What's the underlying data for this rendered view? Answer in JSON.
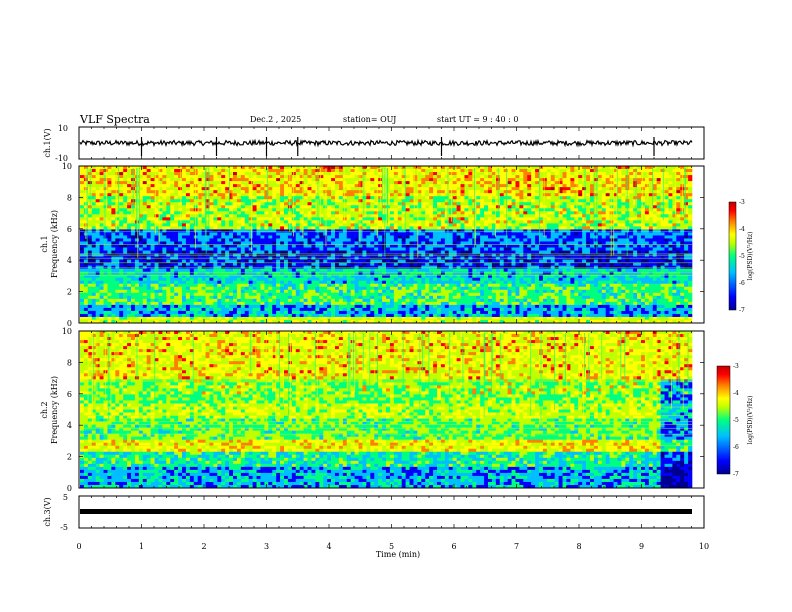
{
  "header": {
    "title": "VLF Spectra",
    "date": "Dec.2 , 2025",
    "station": "station= OUJ",
    "start": "start  UT =   9 : 40 : 0"
  },
  "chart_data": [
    {
      "type": "line",
      "ylabel": "ch.1(V)",
      "ylim": [
        -10,
        10
      ],
      "yticks": [
        "10",
        "-10"
      ],
      "xlim": [
        0,
        10
      ],
      "description_values": {
        "baseline": 0,
        "noise_amplitude": 1,
        "spikes": [
          1,
          2.2,
          3,
          3.5,
          5.8,
          9.2
        ]
      }
    },
    {
      "type": "heatmap",
      "ylabel": "Frequency (kHz)",
      "ylabel2": "ch.1",
      "ylim": [
        0,
        10
      ],
      "yticks": [
        "0",
        "2",
        "4",
        "6",
        "8",
        "10"
      ],
      "xlim": [
        0,
        10
      ],
      "colorbar": {
        "label": "log(PSD)(V²/Hz)",
        "ticks": [
          "-3",
          "-4",
          "-5",
          "-6",
          "-7"
        ],
        "range": [
          -7,
          -3
        ]
      },
      "bands": [
        {
          "f": [
            0.0,
            0.3
          ],
          "level": -4.8
        },
        {
          "f": [
            0.3,
            1.2
          ],
          "level": -6.0
        },
        {
          "f": [
            1.2,
            2.5
          ],
          "level": -5.4
        },
        {
          "f": [
            2.5,
            3.5
          ],
          "level": -5.8
        },
        {
          "f": [
            3.5,
            4.6
          ],
          "level": -6.5
        },
        {
          "f": [
            4.6,
            6.0
          ],
          "level": -6.3
        },
        {
          "f": [
            6.0,
            8.0
          ],
          "level": -5.0
        },
        {
          "f": [
            8.0,
            10.0
          ],
          "level": -4.6
        }
      ]
    },
    {
      "type": "heatmap",
      "ylabel": "Frequency (kHz)",
      "ylabel2": "ch.2",
      "ylim": [
        0,
        10
      ],
      "yticks": [
        "0",
        "2",
        "4",
        "6",
        "8",
        "10"
      ],
      "xlim": [
        0,
        10
      ],
      "colorbar": {
        "label": "log(PSD)(V²/Hz)",
        "ticks": [
          "-3",
          "-4",
          "-5",
          "-6",
          "-7"
        ],
        "range": [
          -7,
          -3
        ]
      },
      "bands": [
        {
          "f": [
            0.0,
            1.4
          ],
          "level": -6.0
        },
        {
          "f": [
            1.4,
            2.4
          ],
          "level": -5.6
        },
        {
          "f": [
            2.4,
            3.0
          ],
          "level": -4.6
        },
        {
          "f": [
            3.0,
            4.4
          ],
          "level": -5.3
        },
        {
          "f": [
            4.4,
            5.3
          ],
          "level": -4.9
        },
        {
          "f": [
            5.3,
            7.0
          ],
          "level": -5.2
        },
        {
          "f": [
            7.0,
            10.0
          ],
          "level": -4.7
        }
      ],
      "low_after": 9.3
    },
    {
      "type": "line",
      "ylabel": "ch.3(V)",
      "ylim": [
        -5,
        5
      ],
      "yticks": [
        "5",
        "-5"
      ],
      "xlim": [
        0,
        10
      ],
      "description_values": {
        "baseline": -1.5
      }
    }
  ],
  "xaxis": {
    "label": "Time  (min)",
    "ticks": [
      "0",
      "1",
      "2",
      "3",
      "4",
      "5",
      "6",
      "7",
      "8",
      "9",
      "10"
    ]
  },
  "colors": {
    "jet": [
      "#00008f",
      "#0000ff",
      "#00bfff",
      "#00ff80",
      "#c0ff00",
      "#ffff00",
      "#ff8000",
      "#ff0000",
      "#c00000"
    ]
  }
}
